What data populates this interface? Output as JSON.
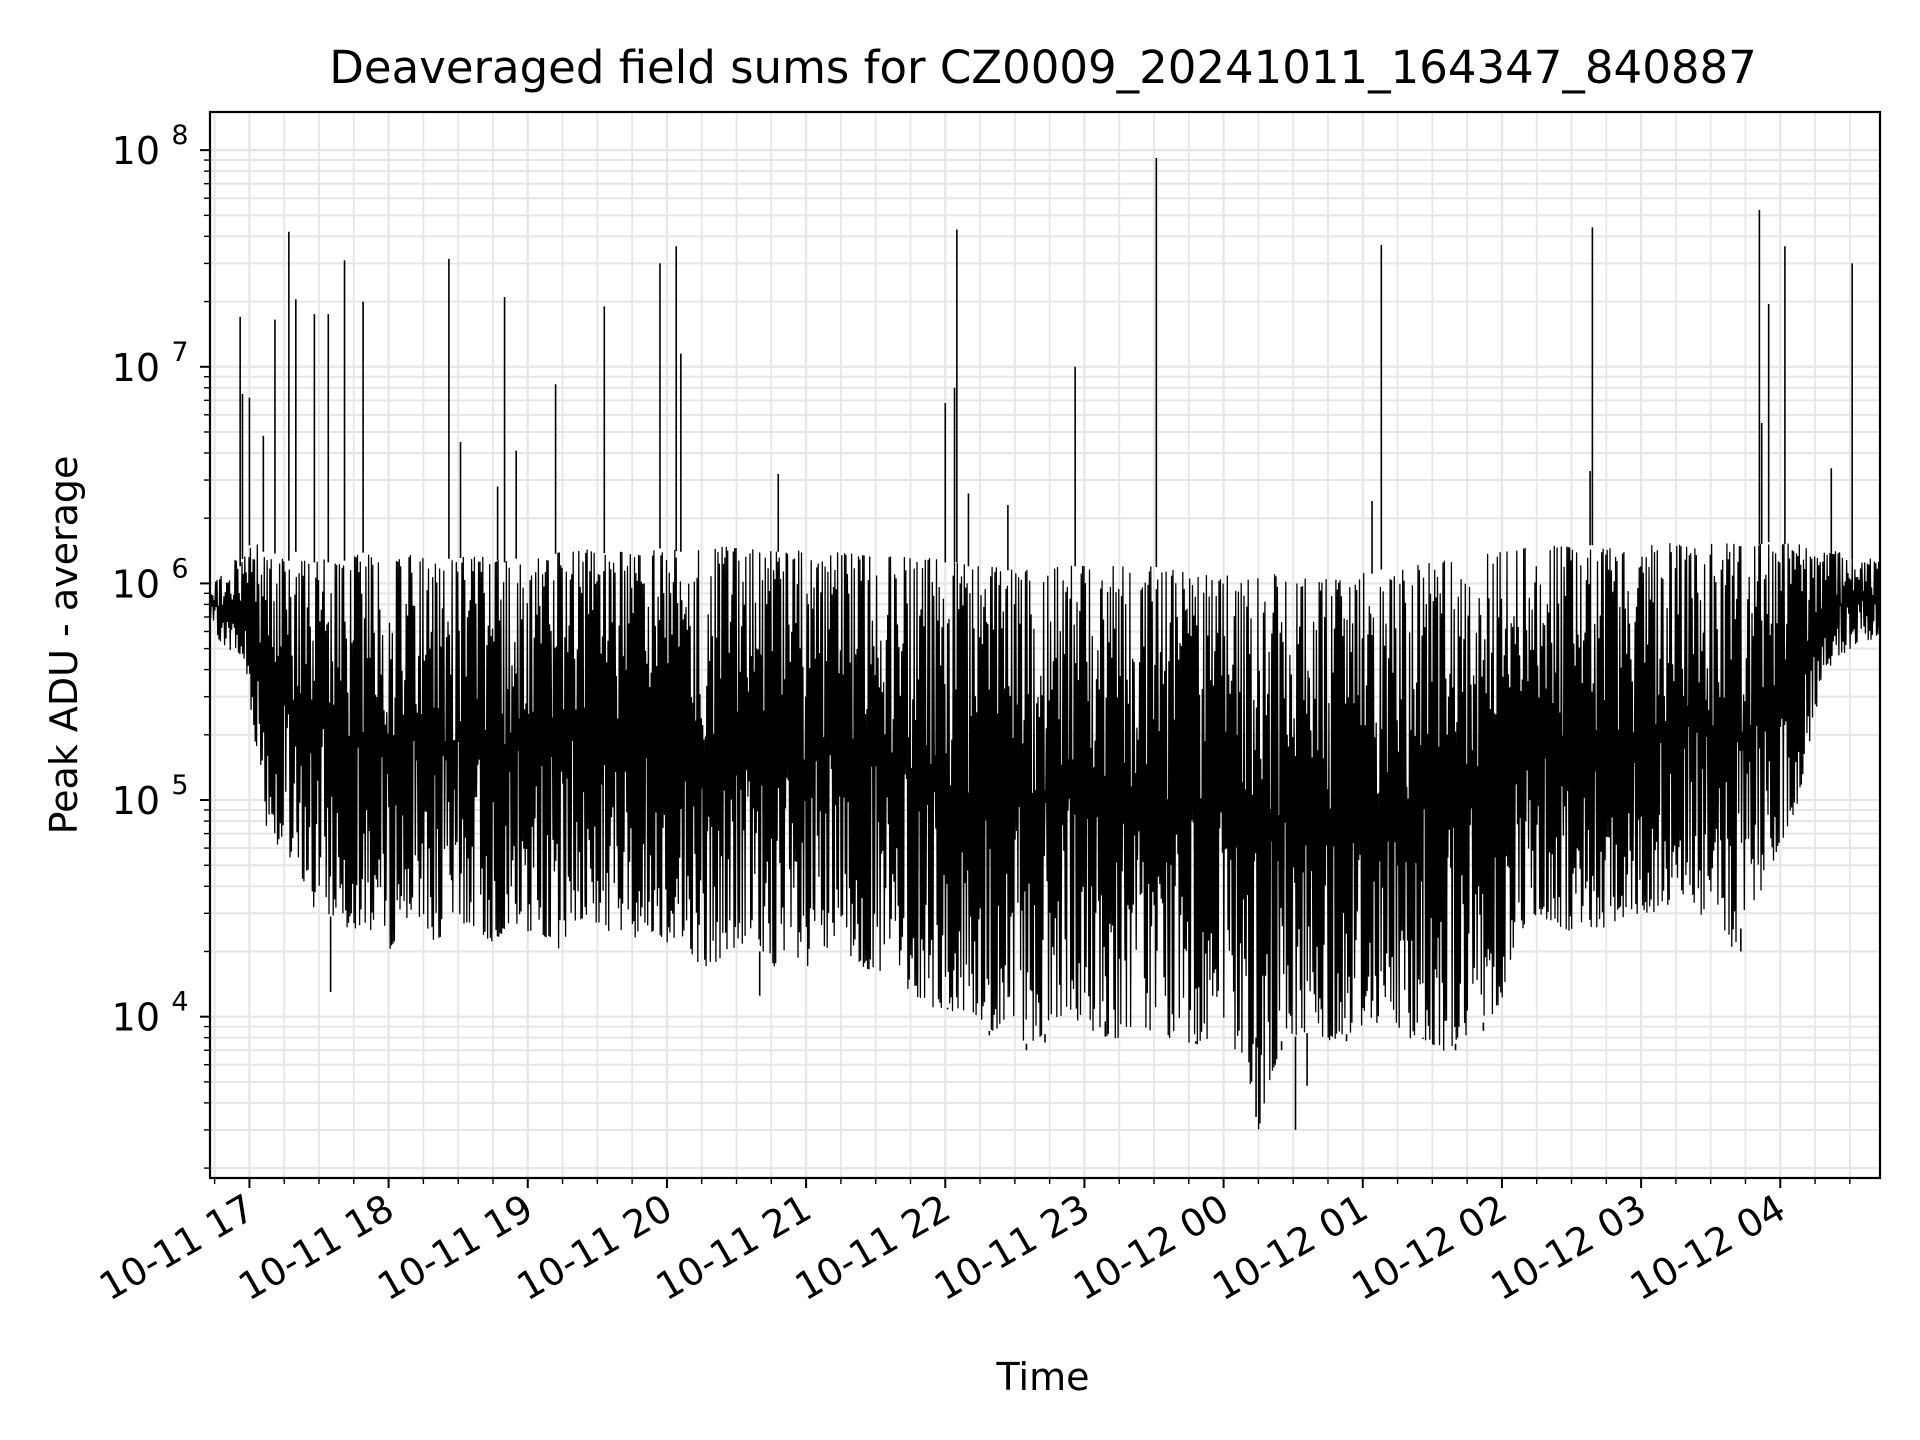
{
  "chart_data": {
    "type": "line",
    "title": "Deaveraged field sums for CZ0009_20241011_164347_840887",
    "xlabel": "Time",
    "ylabel": "Peak ADU - average",
    "yscale": "log",
    "grid": true,
    "xlim": [
      "2024-10-11 16:43",
      "2024-10-12 04:43"
    ],
    "ylim": [
      1800,
      150000000
    ],
    "x_tick_labels": [
      "10-11 17",
      "10-11 18",
      "10-11 19",
      "10-11 20",
      "10-11 21",
      "10-11 22",
      "10-11 23",
      "10-12 00",
      "10-12 01",
      "10-12 02",
      "10-12 03",
      "10-12 04"
    ],
    "y_ticks": [
      {
        "value": 10000,
        "base": "10",
        "exp": "4"
      },
      {
        "value": 100000,
        "base": "10",
        "exp": "5"
      },
      {
        "value": 1000000,
        "base": "10",
        "exp": "6"
      },
      {
        "value": 10000000,
        "base": "10",
        "exp": "7"
      },
      {
        "value": 100000000,
        "base": "10",
        "exp": "8"
      }
    ],
    "line_color": "#000000",
    "series": [
      {
        "x": [
          "16:43",
          "16:47",
          "16:51",
          "16:54",
          "16:56",
          "16:58",
          "17:00",
          "17:02",
          "17:04",
          "17:06",
          "17:08",
          "17:10",
          "17:12",
          "17:14",
          "17:16",
          "17:18",
          "17:20",
          "17:22",
          "17:24",
          "17:26",
          "17:28",
          "17:30",
          "17:32",
          "17:34",
          "17:36",
          "17:38",
          "17:40",
          "17:42",
          "17:44",
          "17:46",
          "17:50",
          "17:55",
          "18:00",
          "18:05",
          "18:10",
          "18:15",
          "18:20",
          "18:25",
          "18:30",
          "18:35",
          "18:40",
          "18:45",
          "18:50",
          "18:55",
          "19:00",
          "19:05",
          "19:10",
          "19:15",
          "19:20",
          "19:25",
          "19:30",
          "19:35",
          "19:40",
          "19:45",
          "19:50",
          "19:55",
          "20:00",
          "20:05",
          "20:10",
          "20:15",
          "20:20",
          "20:25",
          "20:30",
          "20:35",
          "20:40",
          "20:45",
          "20:50",
          "20:55",
          "21:00",
          "21:05",
          "21:10",
          "21:15",
          "21:20",
          "21:25",
          "21:30",
          "21:35",
          "21:40",
          "21:45",
          "21:50",
          "21:55",
          "22:00",
          "22:05",
          "22:10",
          "22:15",
          "22:20",
          "22:25",
          "22:30",
          "22:35",
          "22:40",
          "22:45",
          "22:50",
          "22:55",
          "23:00",
          "23:05",
          "23:10",
          "23:15",
          "23:20",
          "23:25",
          "23:30",
          "23:35",
          "23:40",
          "23:45",
          "23:50",
          "23:55",
          "00:00",
          "00:05",
          "00:10",
          "00:15",
          "00:20",
          "00:25",
          "00:30",
          "00:35",
          "00:40",
          "00:45",
          "00:50",
          "00:55",
          "01:00",
          "01:05",
          "01:10",
          "01:15",
          "01:20",
          "01:25",
          "01:30",
          "01:35",
          "01:40",
          "01:45",
          "01:50",
          "01:55",
          "02:00",
          "02:05",
          "02:10",
          "02:15",
          "02:20",
          "02:25",
          "02:30",
          "02:35",
          "02:40",
          "02:45",
          "02:50",
          "02:55",
          "03:00",
          "03:05",
          "03:10",
          "03:15",
          "03:20",
          "03:25",
          "03:30",
          "03:35",
          "03:40",
          "03:45",
          "03:50",
          "03:55",
          "04:00",
          "04:05",
          "04:10",
          "04:15",
          "04:20",
          "04:25",
          "04:30",
          "04:35",
          "04:40",
          "04:43"
        ],
        "lows": [
          700000,
          550000,
          500000,
          480000,
          450000,
          400000,
          300000,
          200000,
          150000,
          120000,
          60000,
          80000,
          60000,
          55000,
          70000,
          45000,
          40000,
          35000,
          45000,
          40000,
          30000,
          35000,
          40000,
          30000,
          28000,
          30000,
          28000,
          25000,
          30000,
          25000,
          26000,
          24000,
          20000,
          25000,
          30000,
          28000,
          22000,
          24000,
          28000,
          26000,
          24000,
          22000,
          25000,
          26000,
          24000,
          25000,
          22000,
          20000,
          28000,
          27000,
          26000,
          25000,
          24000,
          23000,
          24000,
          25000,
          22000,
          24000,
          20000,
          17000,
          16000,
          20000,
          21000,
          22000,
          20000,
          18000,
          15000,
          17000,
          15000,
          18000,
          20000,
          19000,
          18000,
          17000,
          16000,
          15000,
          15000,
          13000,
          12000,
          11000,
          11000,
          10000,
          9500,
          9000,
          8500,
          8000,
          8000,
          7500,
          8000,
          8500,
          9000,
          9000,
          9000,
          8500,
          8000,
          8000,
          9000,
          9000,
          8500,
          8000,
          8000,
          7500,
          7500,
          8000,
          7500,
          7000,
          6000,
          3000,
          5000,
          7000,
          8000,
          8500,
          8000,
          7800,
          8000,
          8500,
          9000,
          9500,
          9000,
          8500,
          8000,
          8000,
          7500,
          7000,
          7500,
          8000,
          9000,
          10000,
          12000,
          20000,
          25000,
          30000,
          28000,
          25000,
          24000,
          25000,
          26000,
          25000,
          28000,
          30000,
          28000,
          30000,
          32000,
          35000,
          38000,
          30000,
          28000,
          25000,
          20000,
          30000,
          35000,
          45000,
          60000,
          80000,
          120000,
          250000,
          400000,
          450000,
          500000,
          550000,
          550000,
          600000
        ],
        "highs": [
          900000,
          1100000,
          1000000,
          1300000,
          1200000,
          1400000,
          1500000,
          1600000,
          1500000,
          1400000,
          1450000,
          1400000,
          1350000,
          1300000,
          1250000,
          1300000,
          1400000,
          1350000,
          1300000,
          1300000,
          1250000,
          1300000,
          1300000,
          1250000,
          1300000,
          1200000,
          1250000,
          1300000,
          1300000,
          1350000,
          1400000,
          1300000,
          1200000,
          1300000,
          1350000,
          1300000,
          1250000,
          1300000,
          1300000,
          1350000,
          1350000,
          1300000,
          1250000,
          1300000,
          1250000,
          1300000,
          1350000,
          1400000,
          1400000,
          1450000,
          1350000,
          1400000,
          1400000,
          1350000,
          1400000,
          1450000,
          1450000,
          1400000,
          1400000,
          1450000,
          1500000,
          1500000,
          1450000,
          1450000,
          1400000,
          1400000,
          1400000,
          1400000,
          1450000,
          1400000,
          1350000,
          1400000,
          1400000,
          1350000,
          1400000,
          1350000,
          1350000,
          1300000,
          1300000,
          1300000,
          1250000,
          1250000,
          1200000,
          1200000,
          1200000,
          1150000,
          1150000,
          1150000,
          1150000,
          1150000,
          1200000,
          1200000,
          1200000,
          1200000,
          1200000,
          1200000,
          1200000,
          1250000,
          1200000,
          1150000,
          1150000,
          1100000,
          1100000,
          1100000,
          1100000,
          1050000,
          1050000,
          1050000,
          1100000,
          1100000,
          1100000,
          1050000,
          1000000,
          1050000,
          1050000,
          1100000,
          1150000,
          1100000,
          1200000,
          1200000,
          1250000,
          1200000,
          1250000,
          1300000,
          1300000,
          1350000,
          1350000,
          1400000,
          1400000,
          1450000,
          1450000,
          1400000,
          1500000,
          1500000,
          1450000,
          1500000,
          1500000,
          1450000,
          1450000,
          1400000,
          1450000,
          1500000,
          1550000,
          1500000,
          1500000,
          1450000,
          1550000,
          1600000,
          1550000,
          1500000,
          1500000,
          1550000,
          1500000,
          1550000,
          1500000,
          1450000,
          1400000,
          1400000,
          1300000,
          1300000,
          1300000,
          1250000,
          1200000,
          1100000
        ]
      }
    ],
    "spikes": [
      {
        "x": "16:56",
        "y": 17000000
      },
      {
        "x": "16:57",
        "y": 7500000
      },
      {
        "x": "17:00",
        "y": 7200000
      },
      {
        "x": "17:06",
        "y": 4800000
      },
      {
        "x": "17:11",
        "y": 16500000
      },
      {
        "x": "17:17",
        "y": 42000000
      },
      {
        "x": "17:20",
        "y": 20500000
      },
      {
        "x": "17:28",
        "y": 17500000
      },
      {
        "x": "17:34",
        "y": 17500000
      },
      {
        "x": "17:41",
        "y": 31000000
      },
      {
        "x": "17:49",
        "y": 20000000
      },
      {
        "x": "18:26",
        "y": 31500000
      },
      {
        "x": "18:31",
        "y": 4500000
      },
      {
        "x": "18:47",
        "y": 2800000
      },
      {
        "x": "18:50",
        "y": 21000000
      },
      {
        "x": "18:55",
        "y": 4100000
      },
      {
        "x": "19:12",
        "y": 8300000
      },
      {
        "x": "19:33",
        "y": 19000000
      },
      {
        "x": "19:57",
        "y": 30000000
      },
      {
        "x": "20:04",
        "y": 36000000
      },
      {
        "x": "20:06",
        "y": 11500000
      },
      {
        "x": "20:48",
        "y": 3200000
      },
      {
        "x": "22:00",
        "y": 6800000
      },
      {
        "x": "22:04",
        "y": 8000000
      },
      {
        "x": "22:05",
        "y": 43000000
      },
      {
        "x": "22:10",
        "y": 2600000
      },
      {
        "x": "22:27",
        "y": 2300000
      },
      {
        "x": "22:56",
        "y": 10000000
      },
      {
        "x": "23:31",
        "y": 92000000
      },
      {
        "x": "01:04",
        "y": 2400000
      },
      {
        "x": "01:08",
        "y": 36500000
      },
      {
        "x": "02:38",
        "y": 3300000
      },
      {
        "x": "02:39",
        "y": 44000000
      },
      {
        "x": "03:51",
        "y": 53000000
      },
      {
        "x": "03:52",
        "y": 5500000
      },
      {
        "x": "03:55",
        "y": 19500000
      },
      {
        "x": "04:02",
        "y": 36000000
      },
      {
        "x": "04:22",
        "y": 3400000
      },
      {
        "x": "04:31",
        "y": 30000000
      }
    ],
    "dips": [
      {
        "x": "17:35",
        "y": 13000
      },
      {
        "x": "20:40",
        "y": 12500
      },
      {
        "x": "22:01",
        "y": 11000
      },
      {
        "x": "22:19",
        "y": 8200
      },
      {
        "x": "22:35",
        "y": 7000
      },
      {
        "x": "22:43",
        "y": 7600
      },
      {
        "x": "23:09",
        "y": 9500
      },
      {
        "x": "23:48",
        "y": 7700
      },
      {
        "x": "00:14",
        "y": 8000
      },
      {
        "x": "00:25",
        "y": 7700
      },
      {
        "x": "00:31",
        "y": 3000
      },
      {
        "x": "00:36",
        "y": 4800
      },
      {
        "x": "00:53",
        "y": 7700
      },
      {
        "x": "01:26",
        "y": 8000
      },
      {
        "x": "01:40",
        "y": 7000
      },
      {
        "x": "01:52",
        "y": 8600
      },
      {
        "x": "03:43",
        "y": 20000
      }
    ]
  }
}
